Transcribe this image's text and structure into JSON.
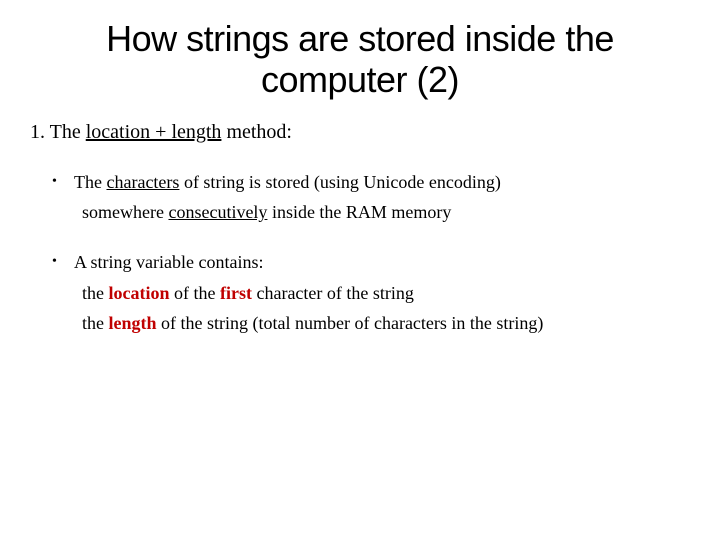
{
  "colors": {
    "background": "#ffffff",
    "text": "#000000",
    "accent": "#c00000"
  },
  "typography": {
    "title_font": "Arial",
    "title_size_pt": 36,
    "body_font": "Times New Roman",
    "body_size_pt": 20,
    "bullet_size_pt": 18
  },
  "title": {
    "line1": "How strings are stored inside the",
    "line2": "computer (2)"
  },
  "numbered": {
    "index": "1.",
    "pre": " The ",
    "u1": "location + length",
    "post": " method:"
  },
  "bullet1": {
    "dot": "•",
    "seg1": "The ",
    "u1": "characters",
    "seg2": " of string is stored (using Unicode encoding)",
    "line2a": "somewhere ",
    "u2": "consecutively",
    "line2b": " inside the RAM memory"
  },
  "bullet2": {
    "dot": "•",
    "line1": "A string variable contains:",
    "s2a": "the ",
    "s2r1": "location",
    "s2b": " of the ",
    "s2r2": "first",
    "s2c": " character of the string",
    "s3a": "the ",
    "s3r1": "length",
    "s3b": " of the string (total number of characters in the string)"
  }
}
